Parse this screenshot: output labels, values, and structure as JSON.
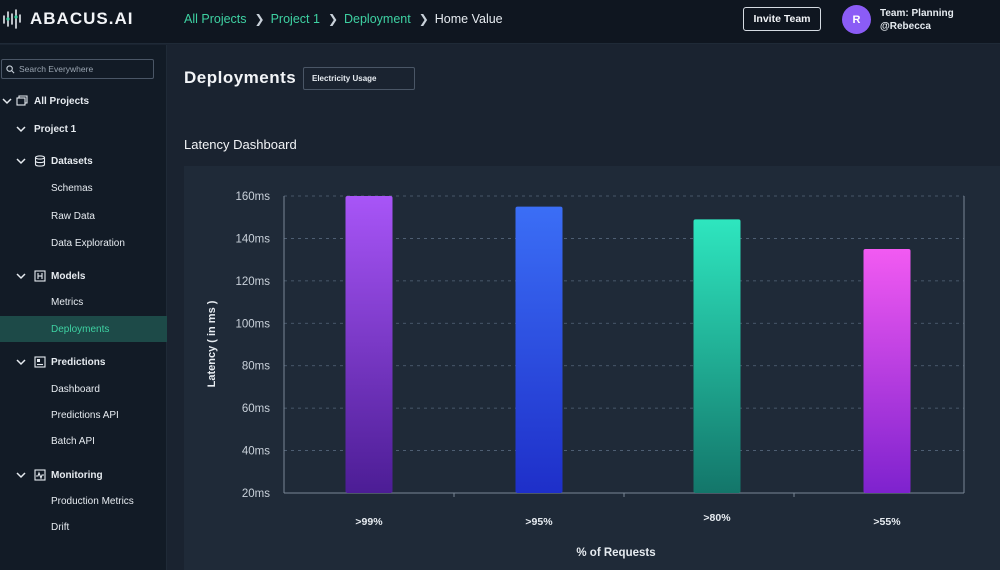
{
  "app": {
    "brand": "ABACUS.AI"
  },
  "breadcrumb": {
    "items": [
      "All Projects",
      "Project 1",
      "Deployment"
    ],
    "current": "Home Value"
  },
  "header": {
    "invite_label": "Invite Team",
    "avatar_initial": "R",
    "team_label": "Team: Planning",
    "user_handle": "@Rebecca"
  },
  "sidebar": {
    "search_placeholder": "Search Everywhere",
    "all_projects": "All Projects",
    "project": "Project 1",
    "datasets": "Datasets",
    "schemas": "Schemas",
    "raw_data": "Raw Data",
    "data_exploration": "Data Exploration",
    "models": "Models",
    "metrics": "Metrics",
    "deployments": "Deployments",
    "predictions": "Predictions",
    "dashboard": "Dashboard",
    "predictions_api": "Predictions API",
    "batch_api": "Batch API",
    "monitoring": "Monitoring",
    "production_metrics": "Production Metrics",
    "drift": "Drift"
  },
  "main": {
    "title": "Deployments",
    "selected_dataset": "Electricity Usage",
    "section_title": "Latency Dashboard"
  },
  "colors": {
    "accent": "#3ed1a2",
    "avatar": "#8b5cf6"
  },
  "chart_data": {
    "type": "bar",
    "title": "Latency Dashboard",
    "xlabel": "% of Requests",
    "ylabel": "Latency ( in ms )",
    "categories": [
      ">99%",
      ">95%",
      ">80%",
      ">55%"
    ],
    "values": [
      160,
      155,
      149,
      135
    ],
    "ylim": [
      20,
      160
    ],
    "yticks": [
      20,
      40,
      60,
      80,
      100,
      120,
      140,
      160
    ],
    "ytick_labels": [
      "20ms",
      "40ms",
      "60ms",
      "80ms",
      "100ms",
      "120ms",
      "140ms",
      "160ms"
    ],
    "bar_colors": [
      [
        "#a855f7",
        "#4c1d95"
      ],
      [
        "#3b6ef6",
        "#1e2fc9"
      ],
      [
        "#2ee6bf",
        "#13766a"
      ],
      [
        "#f25af2",
        "#7e22ce"
      ]
    ],
    "grid": true
  }
}
